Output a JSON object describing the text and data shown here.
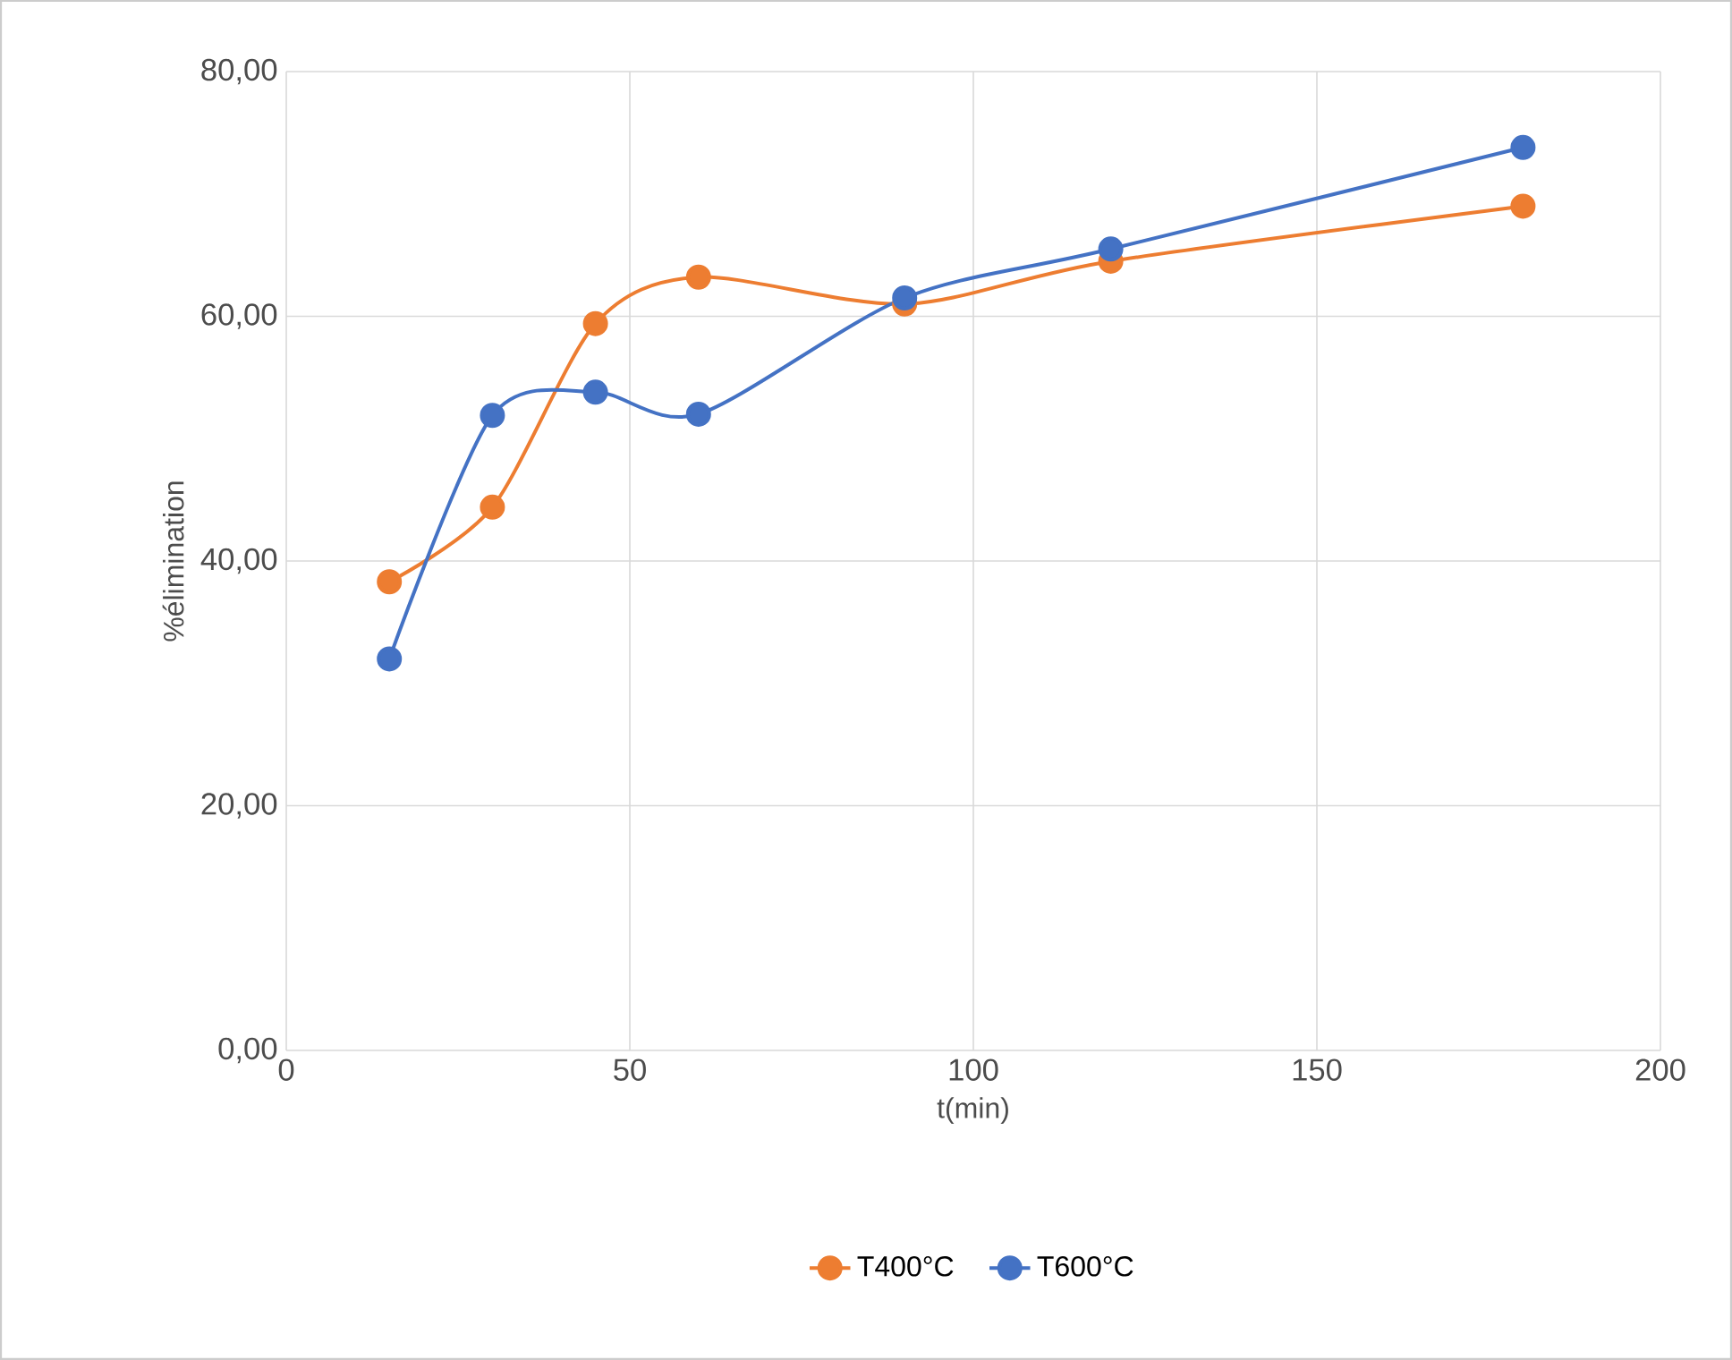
{
  "chart_data": {
    "type": "line",
    "xlabel": "t(min)",
    "ylabel": "%élimination",
    "x": [
      15,
      30,
      45,
      60,
      90,
      120,
      180
    ],
    "series": [
      {
        "name": "T400°C",
        "color": "#ed7d31",
        "values": [
          38.3,
          44.4,
          59.4,
          63.2,
          61.0,
          64.5,
          69.0
        ]
      },
      {
        "name": "T600°C",
        "color": "#4472c4",
        "values": [
          32.0,
          51.9,
          53.8,
          52.0,
          61.5,
          65.5,
          73.8
        ]
      }
    ],
    "xlim": [
      0,
      200
    ],
    "xticks": [
      0,
      50,
      100,
      150,
      200
    ],
    "ylim": [
      0,
      80
    ],
    "yticks": [
      {
        "value": 0,
        "label": "0,00"
      },
      {
        "value": 20,
        "label": "20,00"
      },
      {
        "value": 40,
        "label": "40,00"
      },
      {
        "value": 60,
        "label": "60,00"
      },
      {
        "value": 80,
        "label": "80,00"
      }
    ],
    "grid": true,
    "legend": "bottom",
    "marker": "circle",
    "line_style": "solid"
  }
}
